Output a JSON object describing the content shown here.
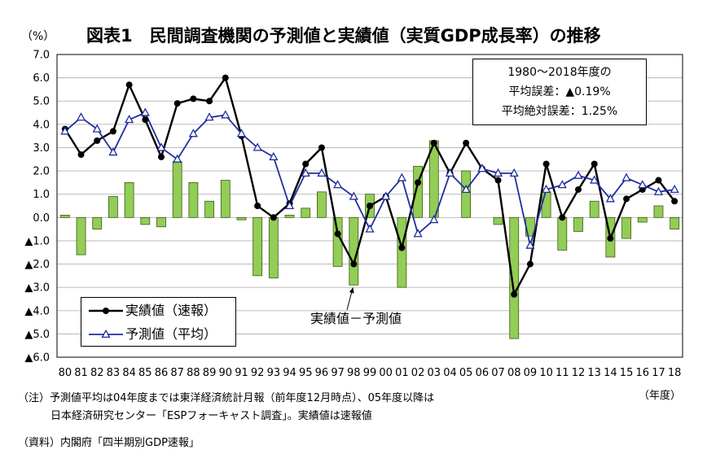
{
  "notes": {
    "note_line1": "（注）予測値平均は04年度までは東洋経済統計月報（前年度12月時点）、05年度以降は",
    "note_line2": "日本経済研究センター「ESPフォーキャスト調査」。実績値は速報値",
    "source": "（資料）内閣府「四半期別GDP速報」"
  },
  "chart_data": {
    "type": "line",
    "title": "図表1　民間調査機関の予測値と実績値（実質GDP成長率）の推移",
    "ylabel": "（%）",
    "xlabel": "（年度）",
    "ylim": [
      -6,
      7
    ],
    "y_ticks": [
      7,
      6,
      5,
      4,
      3,
      2,
      1,
      0,
      -1,
      -2,
      -3,
      -4,
      -5,
      -6
    ],
    "y_tick_labels": [
      "7.0",
      "6.0",
      "5.0",
      "4.0",
      "3.0",
      "2.0",
      "1.0",
      "0.0",
      "▲1.0",
      "▲2.0",
      "▲3.0",
      "▲4.0",
      "▲5.0",
      "▲6.0"
    ],
    "grid": true,
    "legend": "bottom-left",
    "categories": [
      "80",
      "81",
      "82",
      "83",
      "84",
      "85",
      "86",
      "87",
      "88",
      "89",
      "90",
      "91",
      "92",
      "93",
      "94",
      "95",
      "96",
      "97",
      "98",
      "99",
      "00",
      "01",
      "02",
      "03",
      "04",
      "05",
      "06",
      "07",
      "08",
      "09",
      "10",
      "11",
      "12",
      "13",
      "14",
      "15",
      "16",
      "17",
      "18"
    ],
    "series": [
      {
        "name": "実績値（速報）",
        "type": "line",
        "marker": "filled-circle",
        "color": "#000000",
        "values": [
          3.8,
          2.7,
          3.3,
          3.7,
          5.7,
          4.2,
          2.6,
          4.9,
          5.1,
          5.0,
          6.0,
          3.5,
          0.5,
          0.0,
          0.6,
          2.3,
          3.0,
          -0.7,
          -2.0,
          0.5,
          0.9,
          -1.3,
          1.5,
          3.2,
          1.9,
          3.2,
          2.1,
          1.6,
          -3.3,
          -2.0,
          2.3,
          0.0,
          1.2,
          2.3,
          -0.9,
          0.8,
          1.2,
          1.6,
          0.7
        ]
      },
      {
        "name": "予測値（平均）",
        "type": "line",
        "marker": "open-triangle",
        "color": "#1f2e9e",
        "values": [
          3.7,
          4.3,
          3.8,
          2.8,
          4.2,
          4.5,
          3.0,
          2.5,
          3.6,
          4.3,
          4.4,
          3.6,
          3.0,
          2.6,
          0.5,
          1.9,
          1.9,
          1.4,
          0.9,
          -0.5,
          0.9,
          1.7,
          -0.7,
          -0.1,
          1.9,
          1.2,
          2.1,
          1.9,
          1.9,
          -1.2,
          1.2,
          1.4,
          1.8,
          1.6,
          0.8,
          1.7,
          1.4,
          1.1,
          1.2
        ]
      },
      {
        "name": "実績値－予測値",
        "type": "bar",
        "color": "#92cd55",
        "outline": "#3d5a18",
        "values": [
          0.1,
          -1.6,
          -0.5,
          0.9,
          1.5,
          -0.3,
          -0.4,
          2.4,
          1.5,
          0.7,
          1.6,
          -0.1,
          -2.5,
          -2.6,
          0.1,
          0.4,
          1.1,
          -2.1,
          -2.9,
          1.0,
          0.0,
          -3.0,
          2.2,
          3.3,
          0.0,
          2.0,
          0.0,
          -0.3,
          -5.2,
          -0.8,
          1.1,
          -1.4,
          -0.6,
          0.7,
          -1.7,
          -0.9,
          -0.2,
          0.5,
          -0.5
        ]
      }
    ],
    "stats_box": [
      "1980～2018年度の",
      "平均誤差：▲0.19%",
      "平均絶対誤差：1.25%"
    ]
  }
}
